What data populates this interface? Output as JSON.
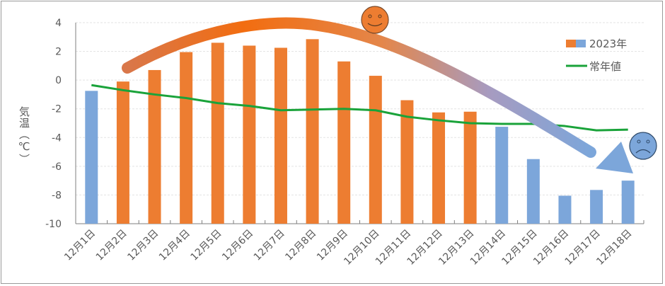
{
  "chart_data": {
    "type": "bar",
    "title": "",
    "xlabel": "",
    "ylabel": "気温（℃）",
    "ylim": [
      -10,
      4
    ],
    "yticks": [
      4,
      2,
      0,
      -2,
      -4,
      -6,
      -8,
      -10
    ],
    "grid": true,
    "legend_placement": "top-right",
    "categories": [
      "12月1日",
      "12月2日",
      "12月3日",
      "12月4日",
      "12月5日",
      "12月6日",
      "12月7日",
      "12月8日",
      "12月9日",
      "12月10日",
      "12月11日",
      "12月12日",
      "12月13日",
      "12月14日",
      "12月15日",
      "12月16日",
      "12月17日",
      "12月18日"
    ],
    "series": [
      {
        "name": "2023年",
        "kind": "bar",
        "values": [
          -0.75,
          -0.1,
          0.7,
          1.95,
          2.6,
          2.4,
          2.25,
          2.85,
          1.3,
          0.3,
          -1.4,
          -2.25,
          -2.2,
          -3.25,
          -5.5,
          -8.05,
          -7.65,
          -7.0
        ],
        "bar_colors": [
          "#7ca6da",
          "#ed7d31",
          "#ed7d31",
          "#ed7d31",
          "#ed7d31",
          "#ed7d31",
          "#ed7d31",
          "#ed7d31",
          "#ed7d31",
          "#ed7d31",
          "#ed7d31",
          "#ed7d31",
          "#ed7d31",
          "#7ca6da",
          "#7ca6da",
          "#7ca6da",
          "#7ca6da",
          "#7ca6da"
        ]
      },
      {
        "name": "常年値",
        "kind": "line",
        "color": "#1aa33a",
        "values": [
          -0.35,
          -0.7,
          -1.0,
          -1.25,
          -1.6,
          -1.8,
          -2.1,
          -2.05,
          -2.0,
          -2.1,
          -2.55,
          -2.8,
          -3.0,
          -3.05,
          -3.05,
          -3.2,
          -3.5,
          -3.45
        ]
      }
    ],
    "colors": {
      "warm": "#ed7d31",
      "cold": "#7ca6da",
      "normal": "#1aa33a"
    },
    "annotations": [
      {
        "type": "trend-arrow",
        "from_color": "#ed7d31",
        "to_color": "#7ca6da"
      },
      {
        "type": "icon",
        "name": "smiling-face-icon",
        "color": "#ed7d31"
      },
      {
        "type": "icon",
        "name": "sad-face-icon",
        "color": "#7ca6da"
      }
    ]
  }
}
